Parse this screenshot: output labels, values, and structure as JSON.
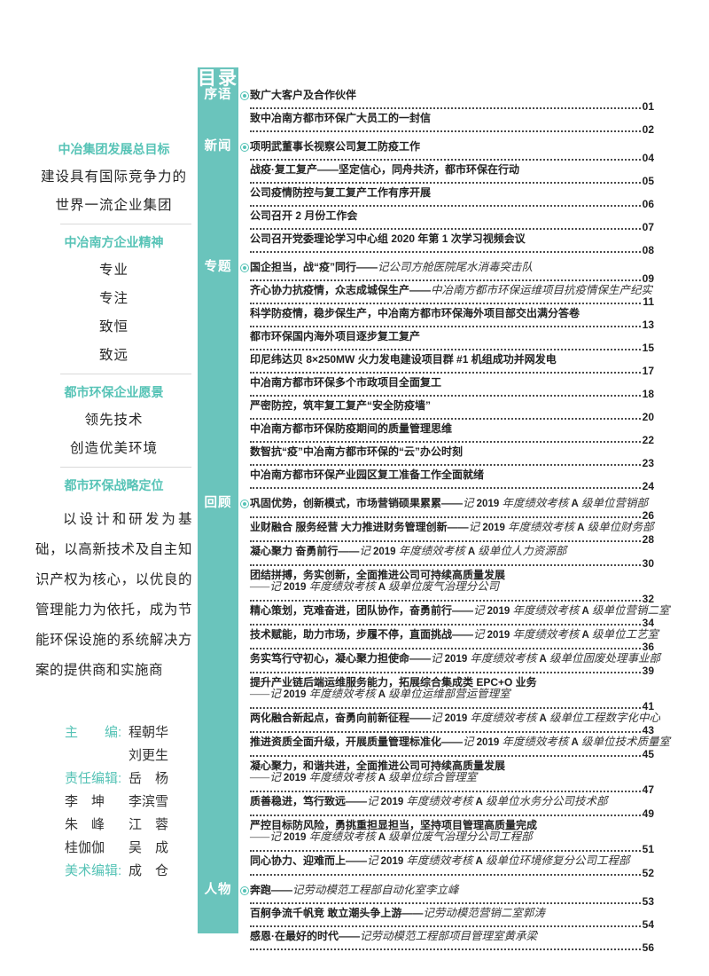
{
  "colors": {
    "accent_teal": "#6ac4bc",
    "accent_teal_text": "#56c3b6",
    "ink": "#222222"
  },
  "sidebar": {
    "blocks": [
      {
        "heading": "中冶集团发展总目标",
        "lines": [
          "建设具有国际竞争力的",
          "世界一流企业集团"
        ]
      },
      {
        "heading": "中冶南方企业精神",
        "lines": [
          "专业",
          "专注",
          "致恒",
          "致远"
        ]
      },
      {
        "heading": "都市环保企业愿景",
        "lines": [
          "领先技术",
          "创造优美环境"
        ]
      },
      {
        "heading": "都市环保战略定位",
        "paragraph": "以设计和研发为基础，以高新技术及自主知识产权为核心，以优良的管理能力为依托，成为节能环保设施的系统解决方案的提供商和实施商"
      }
    ],
    "editors": [
      {
        "l": "主　　编:",
        "lab": true,
        "r": "程朝华"
      },
      {
        "l": "",
        "lab": false,
        "r": "刘更生"
      },
      {
        "l": "责任编辑:",
        "lab": true,
        "r": "岳　杨"
      },
      {
        "l": "李　坤",
        "lab": false,
        "r": "李滨雪"
      },
      {
        "l": "朱　峰",
        "lab": false,
        "r": "江　蓉"
      },
      {
        "l": "桂伽伽",
        "lab": false,
        "r": "吴　成"
      },
      {
        "l": "美术编辑:",
        "lab": true,
        "r": "成　仓"
      }
    ]
  },
  "toc": {
    "title": "目录",
    "sections": [
      {
        "label": "序语",
        "entries": [
          {
            "t": "致广大客户及合作伙伴",
            "p": "01"
          },
          {
            "t": "致中冶南方都市环保广大员工的一封信",
            "p": "02"
          }
        ]
      },
      {
        "label": "新闻",
        "entries": [
          {
            "t": "项明武董事长视察公司复工防疫工作",
            "p": "04"
          },
          {
            "t": "战疫·复工复产——坚定信心，同舟共济，都市环保在行动",
            "p": "05"
          },
          {
            "t": "公司疫情防控与复工复产工作有序开展",
            "p": "06"
          },
          {
            "t": "公司召开 2 月份工作会",
            "p": "07"
          },
          {
            "t": "公司召开党委理论学习中心组 2020 年第 1 次学习视频会议",
            "p": "08"
          }
        ]
      },
      {
        "label": "专题",
        "entries": [
          {
            "t": "国企担当，战“疫”同行——",
            "s": "记公司方舱医院尾水消毒突击队",
            "p": "09"
          },
          {
            "t": "齐心协力抗疫情，众志成城保生产——",
            "s": "中冶南方都市环保运维项目抗疫情保生产纪实",
            "p": "11"
          },
          {
            "t": "科学防疫情，稳步保生产，中冶南方都市环保海外项目部交出满分答卷",
            "p": "13"
          },
          {
            "t": "都市环保国内海外项目逐步复工复产",
            "p": "15"
          },
          {
            "t": "印尼纬达贝 8×250MW 火力发电建设项目群 #1 机组成功并网发电",
            "p": "17"
          },
          {
            "t": "中冶南方都市环保多个市政项目全面复工",
            "p": "18"
          },
          {
            "t": "严密防控，筑牢复工复产“安全防疫墙”",
            "p": "20"
          },
          {
            "t": "中冶南方都市环保防疫期间的质量管理思维",
            "p": "22"
          },
          {
            "t": "数智抗“疫”中冶南方都市环保的“云”办公时刻",
            "p": "23"
          },
          {
            "t": "中冶南方都市环保产业园区复工准备工作全面就绪",
            "p": "24"
          }
        ]
      },
      {
        "label": "回顾",
        "entries": [
          {
            "t": "巩固优势，创新模式，市场营销硕果累累——",
            "s": "记 2019 年度绩效考核 A 级单位营销部",
            "p": "26"
          },
          {
            "t": "业财融合 服务经营 大力推进财务管理创新——",
            "s": "记 2019 年度绩效考核 A 级单位财务部",
            "p": "28"
          },
          {
            "t": "凝心聚力 奋勇前行——",
            "s": "记 2019 年度绩效考核 A 级单位人力资源部",
            "p": "30"
          },
          {
            "t": "团结拼搏，务实创新，全面推进公司可持续高质量发展",
            "s": "——记 2019 年度绩效考核 A 级单位废气治理分公司",
            "s2": true,
            "p": "32"
          },
          {
            "t": "精心策划，克难奋进，团队协作，奋勇前行——",
            "s": "记 2019 年度绩效考核 A 级单位营销二室",
            "p": "34"
          },
          {
            "t": "技术赋能，助力市场，步履不停，直面挑战——",
            "s": "记 2019 年度绩效考核 A 级单位工艺室",
            "p": "36"
          },
          {
            "t": "务实笃行守初心，凝心聚力担使命——",
            "s": "记 2019 年度绩效考核 A 级单位固废处理事业部",
            "p": "39"
          },
          {
            "t": "提升产业链后端运维服务能力，拓展综合集成类 EPC+O 业务",
            "s": "——记 2019 年度绩效考核 A 级单位运维部营运管理室",
            "s2": true,
            "p": "41"
          },
          {
            "t": "两化融合新起点，奋勇向前新征程——",
            "s": "记 2019 年度绩效考核 A 级单位工程数字化中心",
            "p": "43"
          },
          {
            "t": "推进资质全面升级，开展质量管理标准化——",
            "s": "记 2019 年度绩效考核 A 级单位技术质量室",
            "p": "45"
          },
          {
            "t": "凝心聚力，和谐共进，全面推进公司可持续高质量发展",
            "s": "——记 2019 年度绩效考核 A 级单位综合管理室",
            "s2": true,
            "p": "47"
          },
          {
            "t": "质善稳进，笃行致远——",
            "s": "记 2019 年度绩效考核 A 级单位水务分公司技术部",
            "p": "49"
          },
          {
            "t": "严控目标防风险，勇挑重担显担当，坚持项目管理高质量完成",
            "s": "——记 2019 年度绩效考核 A 级单位废气治理分公司工程部",
            "s2": true,
            "p": "51"
          },
          {
            "t": "同心协力、迎难而上——",
            "s": "记 2019 年度绩效考核 A 级单位环境修复分公司工程部",
            "p": "52"
          }
        ]
      },
      {
        "label": "人物",
        "entries": [
          {
            "t": "奔跑——",
            "s": "记劳动模范工程部自动化室李立峰",
            "p": "53"
          },
          {
            "t": "百舸争流千帆竞 敢立潮头争上游——",
            "s": "记劳动模范营销二室郭涛",
            "p": "54"
          },
          {
            "t": "感恩·在最好的时代——",
            "s": "记劳动模范工程部项目管理室黄承梁",
            "p": "56"
          }
        ]
      }
    ]
  }
}
